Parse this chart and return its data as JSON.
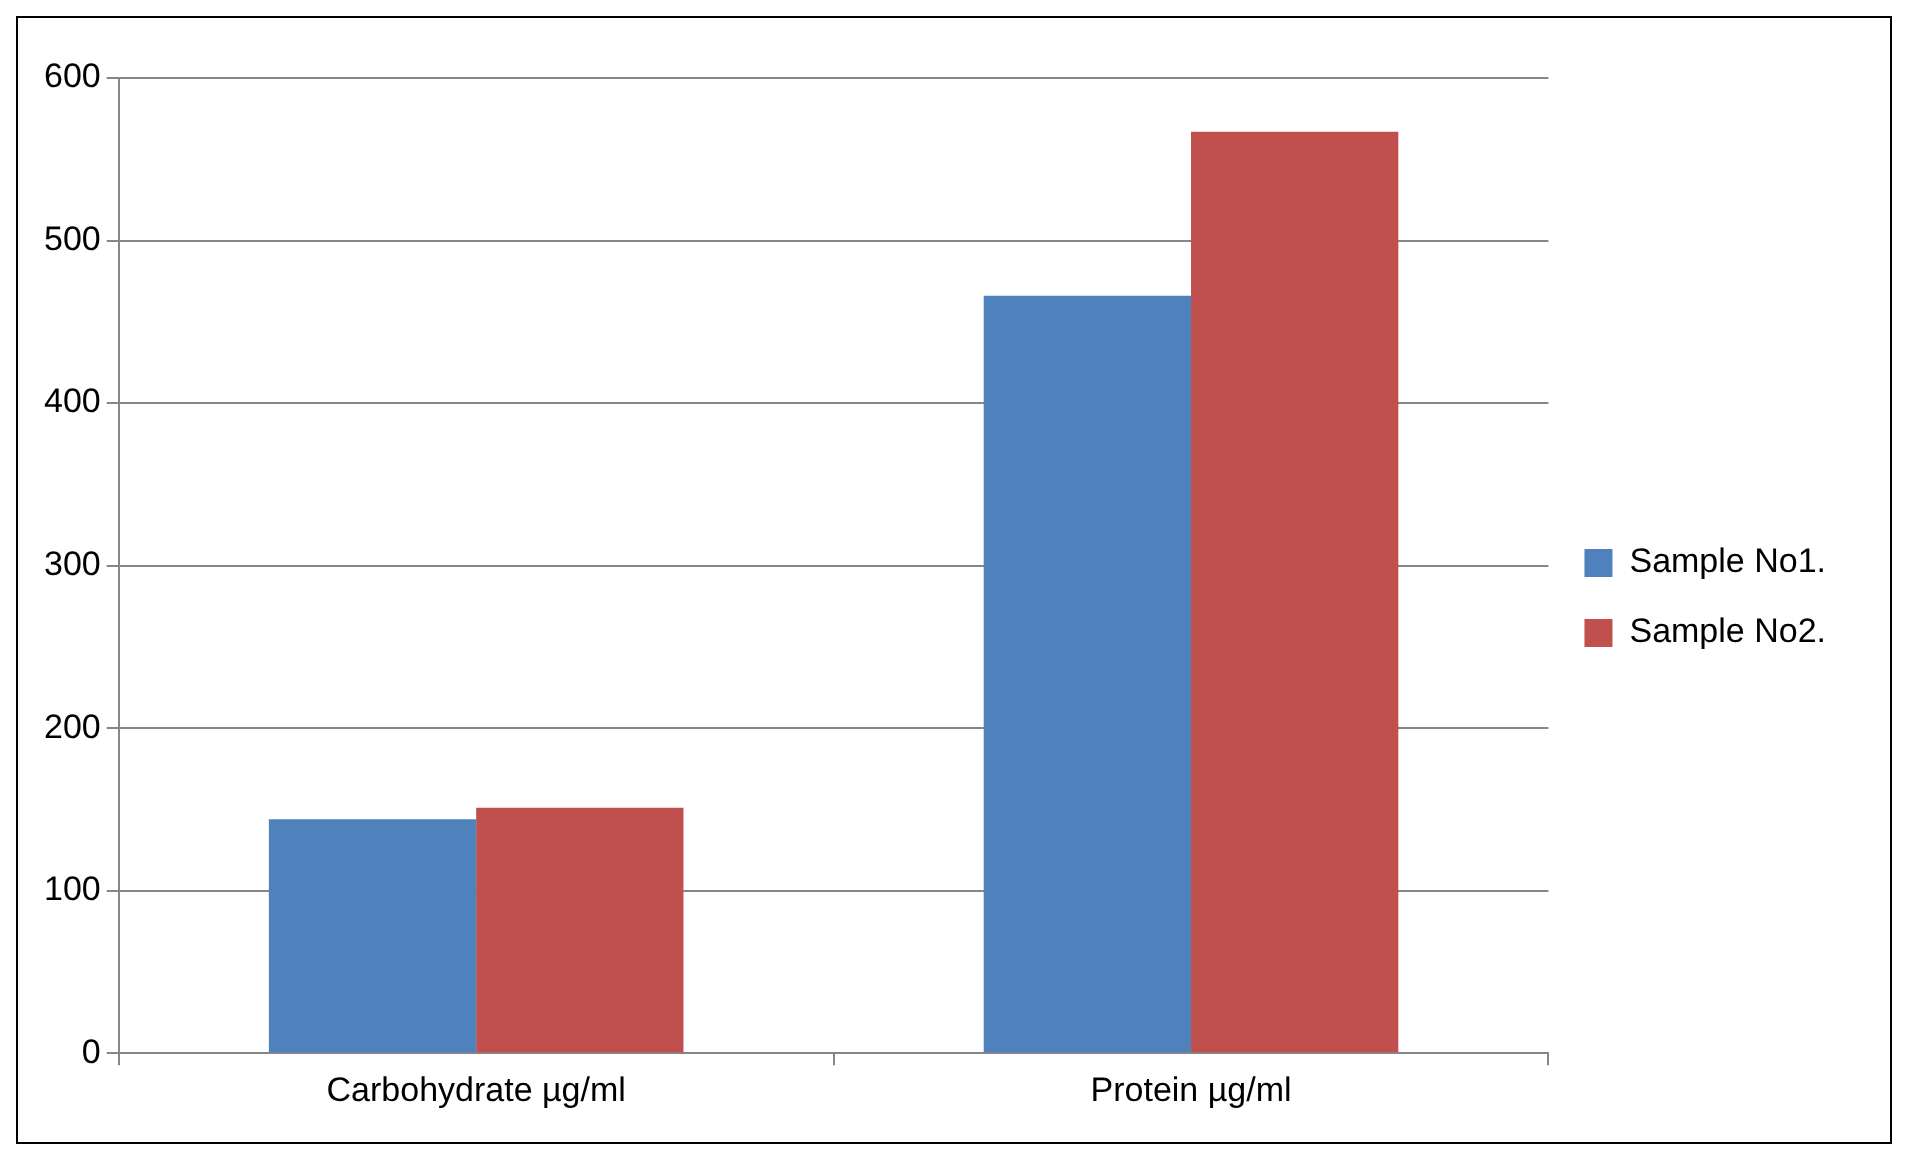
{
  "chart_data": {
    "type": "bar",
    "categories": [
      "Carbohydrate µg/ml",
      "Protein µg/ml"
    ],
    "series": [
      {
        "name": "Sample No1.",
        "color": "#4f81bd",
        "values": [
          144,
          466
        ]
      },
      {
        "name": "Sample No2.",
        "color": "#c0504d",
        "values": [
          151,
          567
        ]
      }
    ],
    "ylim": [
      0,
      600
    ],
    "yticks": [
      0,
      100,
      200,
      300,
      400,
      500,
      600
    ],
    "grid": "y",
    "legend": "right"
  }
}
